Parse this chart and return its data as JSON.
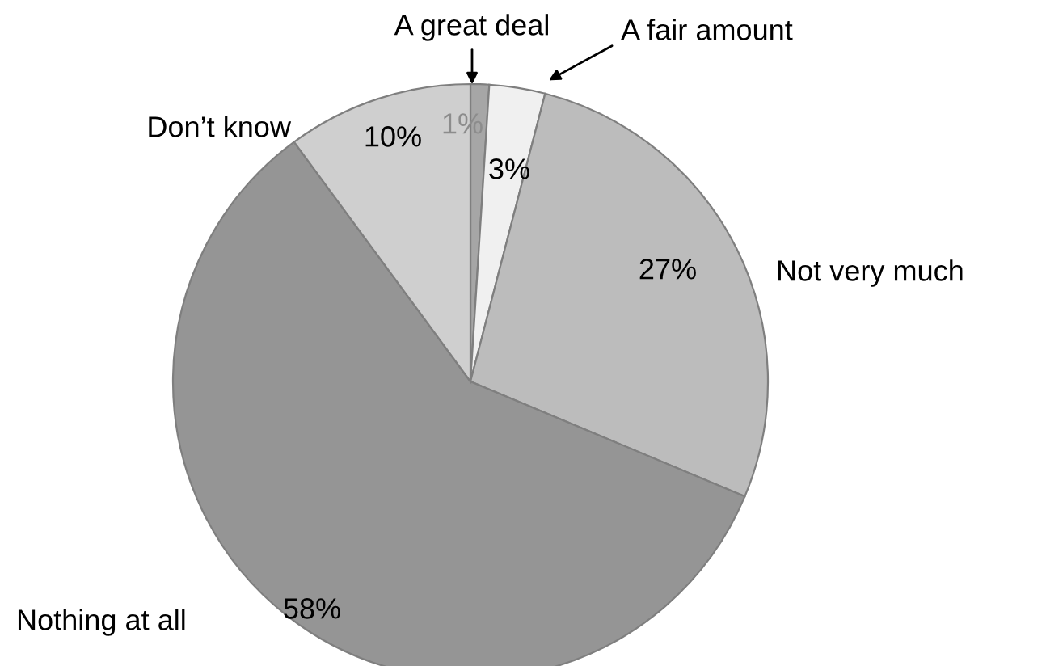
{
  "chart_data": {
    "type": "pie",
    "categories": [
      "A great deal",
      "A fair amount",
      "Not very much",
      "Nothing at all",
      "Don’t know"
    ],
    "values": [
      1,
      3,
      27,
      58,
      10
    ],
    "value_labels": [
      "1%",
      "3%",
      "27%",
      "58%",
      "10%"
    ],
    "colors": [
      "#a6a6a6",
      "#f0f0f0",
      "#bcbcbc",
      "#959595",
      "#cfcfcf"
    ],
    "legend": false
  }
}
